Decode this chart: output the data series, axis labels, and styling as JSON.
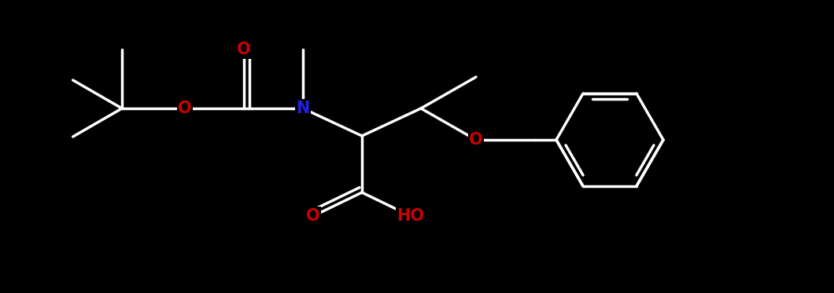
{
  "bg_color": "#000000",
  "bond_color": "#ffffff",
  "N_color": "#2222dd",
  "O_color": "#cc0000",
  "bond_width": 2.5,
  "figsize": [
    10.6,
    3.73
  ],
  "dpi": 100,
  "font_size": 15,
  "font_weight": "bold",
  "xlim": [
    0,
    10.6
  ],
  "ylim": [
    0,
    3.73
  ]
}
